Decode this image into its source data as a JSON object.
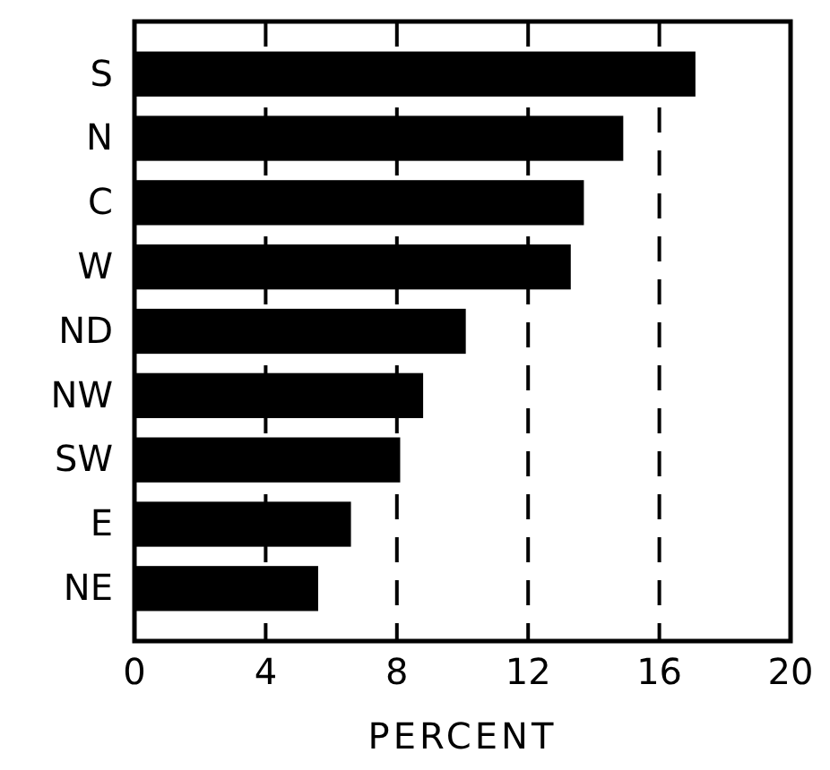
{
  "chart_data": {
    "type": "bar",
    "orientation": "horizontal",
    "xlabel": "PERCENT",
    "categories": [
      "S",
      "N",
      "C",
      "W",
      "ND",
      "NW",
      "SW",
      "E",
      "NE"
    ],
    "values": [
      17.1,
      14.9,
      13.7,
      13.3,
      10.1,
      8.8,
      8.1,
      6.6,
      5.6
    ],
    "color": "#000000",
    "xlim": [
      0,
      20
    ],
    "xticks": [
      0,
      4,
      8,
      12,
      16,
      20
    ],
    "grid": "x",
    "line_style": "dashed"
  }
}
